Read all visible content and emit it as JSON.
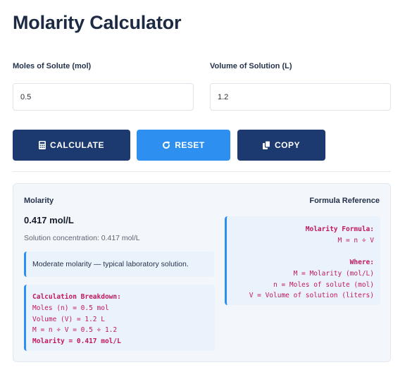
{
  "title": "Molarity Calculator",
  "inputs": {
    "moles": {
      "label": "Moles of Solute (mol)",
      "value": "0.5"
    },
    "volume": {
      "label": "Volume of Solution (L)",
      "value": "1.2"
    }
  },
  "buttons": {
    "calculate": {
      "label": "CALCULATE",
      "icon": "calculator-icon"
    },
    "reset": {
      "label": "RESET",
      "icon": "redo-icon"
    },
    "copy": {
      "label": "COPY",
      "icon": "copy-icon"
    }
  },
  "colors": {
    "primary": "#1c3a6f",
    "accent": "#2d8ff0",
    "code": "#c2185b",
    "panel": "#f3f6fa"
  },
  "result": {
    "label": "Molarity",
    "value": "0.417 mol/L",
    "sub": "Solution concentration: 0.417 mol/L",
    "note": "Moderate molarity — typical laboratory solution.",
    "breakdown": {
      "title": "Calculation Breakdown:",
      "lines": [
        "Moles (n) = 0.5 mol",
        "Volume (V) = 1.2 L",
        "M = n ÷ V = 0.5 ÷ 1.2"
      ],
      "final": "Molarity = 0.417 mol/L"
    }
  },
  "formula": {
    "title": "Formula Reference",
    "heading": "Molarity Formula:",
    "expression": "M = n ÷ V",
    "where": "Where:",
    "definitions": [
      "M = Molarity (mol/L)",
      "n = Moles of solute (mol)",
      "V = Volume of solution (liters)"
    ]
  }
}
